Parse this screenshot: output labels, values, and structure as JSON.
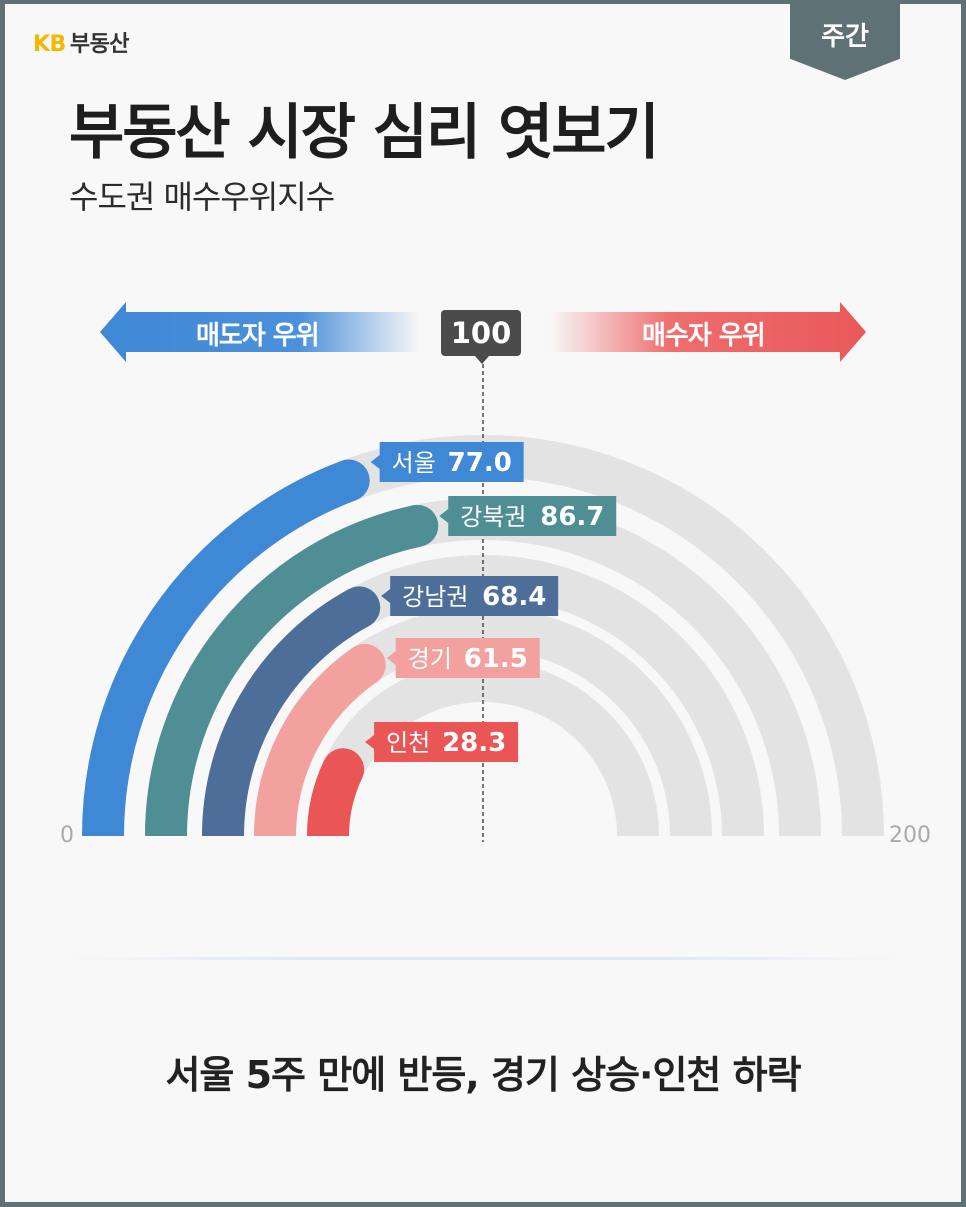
{
  "brand": {
    "logo": "KB",
    "name": "부동산"
  },
  "badge": {
    "label": "주간"
  },
  "header": {
    "title": "부동산 시장 심리 엿보기",
    "subtitle": "수도권 매수우위지수"
  },
  "legend": {
    "left_label": "매도자 우위",
    "right_label": "매수자 우위",
    "center_label": "100"
  },
  "chart_data": {
    "type": "radial-bar",
    "min": 0,
    "max": 200,
    "reference": 100,
    "axis_labels": {
      "min": "0",
      "max": "200"
    },
    "series": [
      {
        "name": "서울",
        "value": 77.0,
        "label": "77.0",
        "color": "#3f88d6"
      },
      {
        "name": "강북권",
        "value": 86.7,
        "label": "86.7",
        "color": "#4f8e94"
      },
      {
        "name": "강남권",
        "value": 68.4,
        "label": "68.4",
        "color": "#4d6e99"
      },
      {
        "name": "경기",
        "value": 61.5,
        "label": "61.5",
        "color": "#f2a19f"
      },
      {
        "name": "인천",
        "value": 28.3,
        "label": "28.3",
        "color": "#ea5656"
      }
    ],
    "track_color": "#e3e3e3"
  },
  "footer": {
    "headline": "서울 5주 만에 반등, 경기 상승·인천 하락"
  }
}
